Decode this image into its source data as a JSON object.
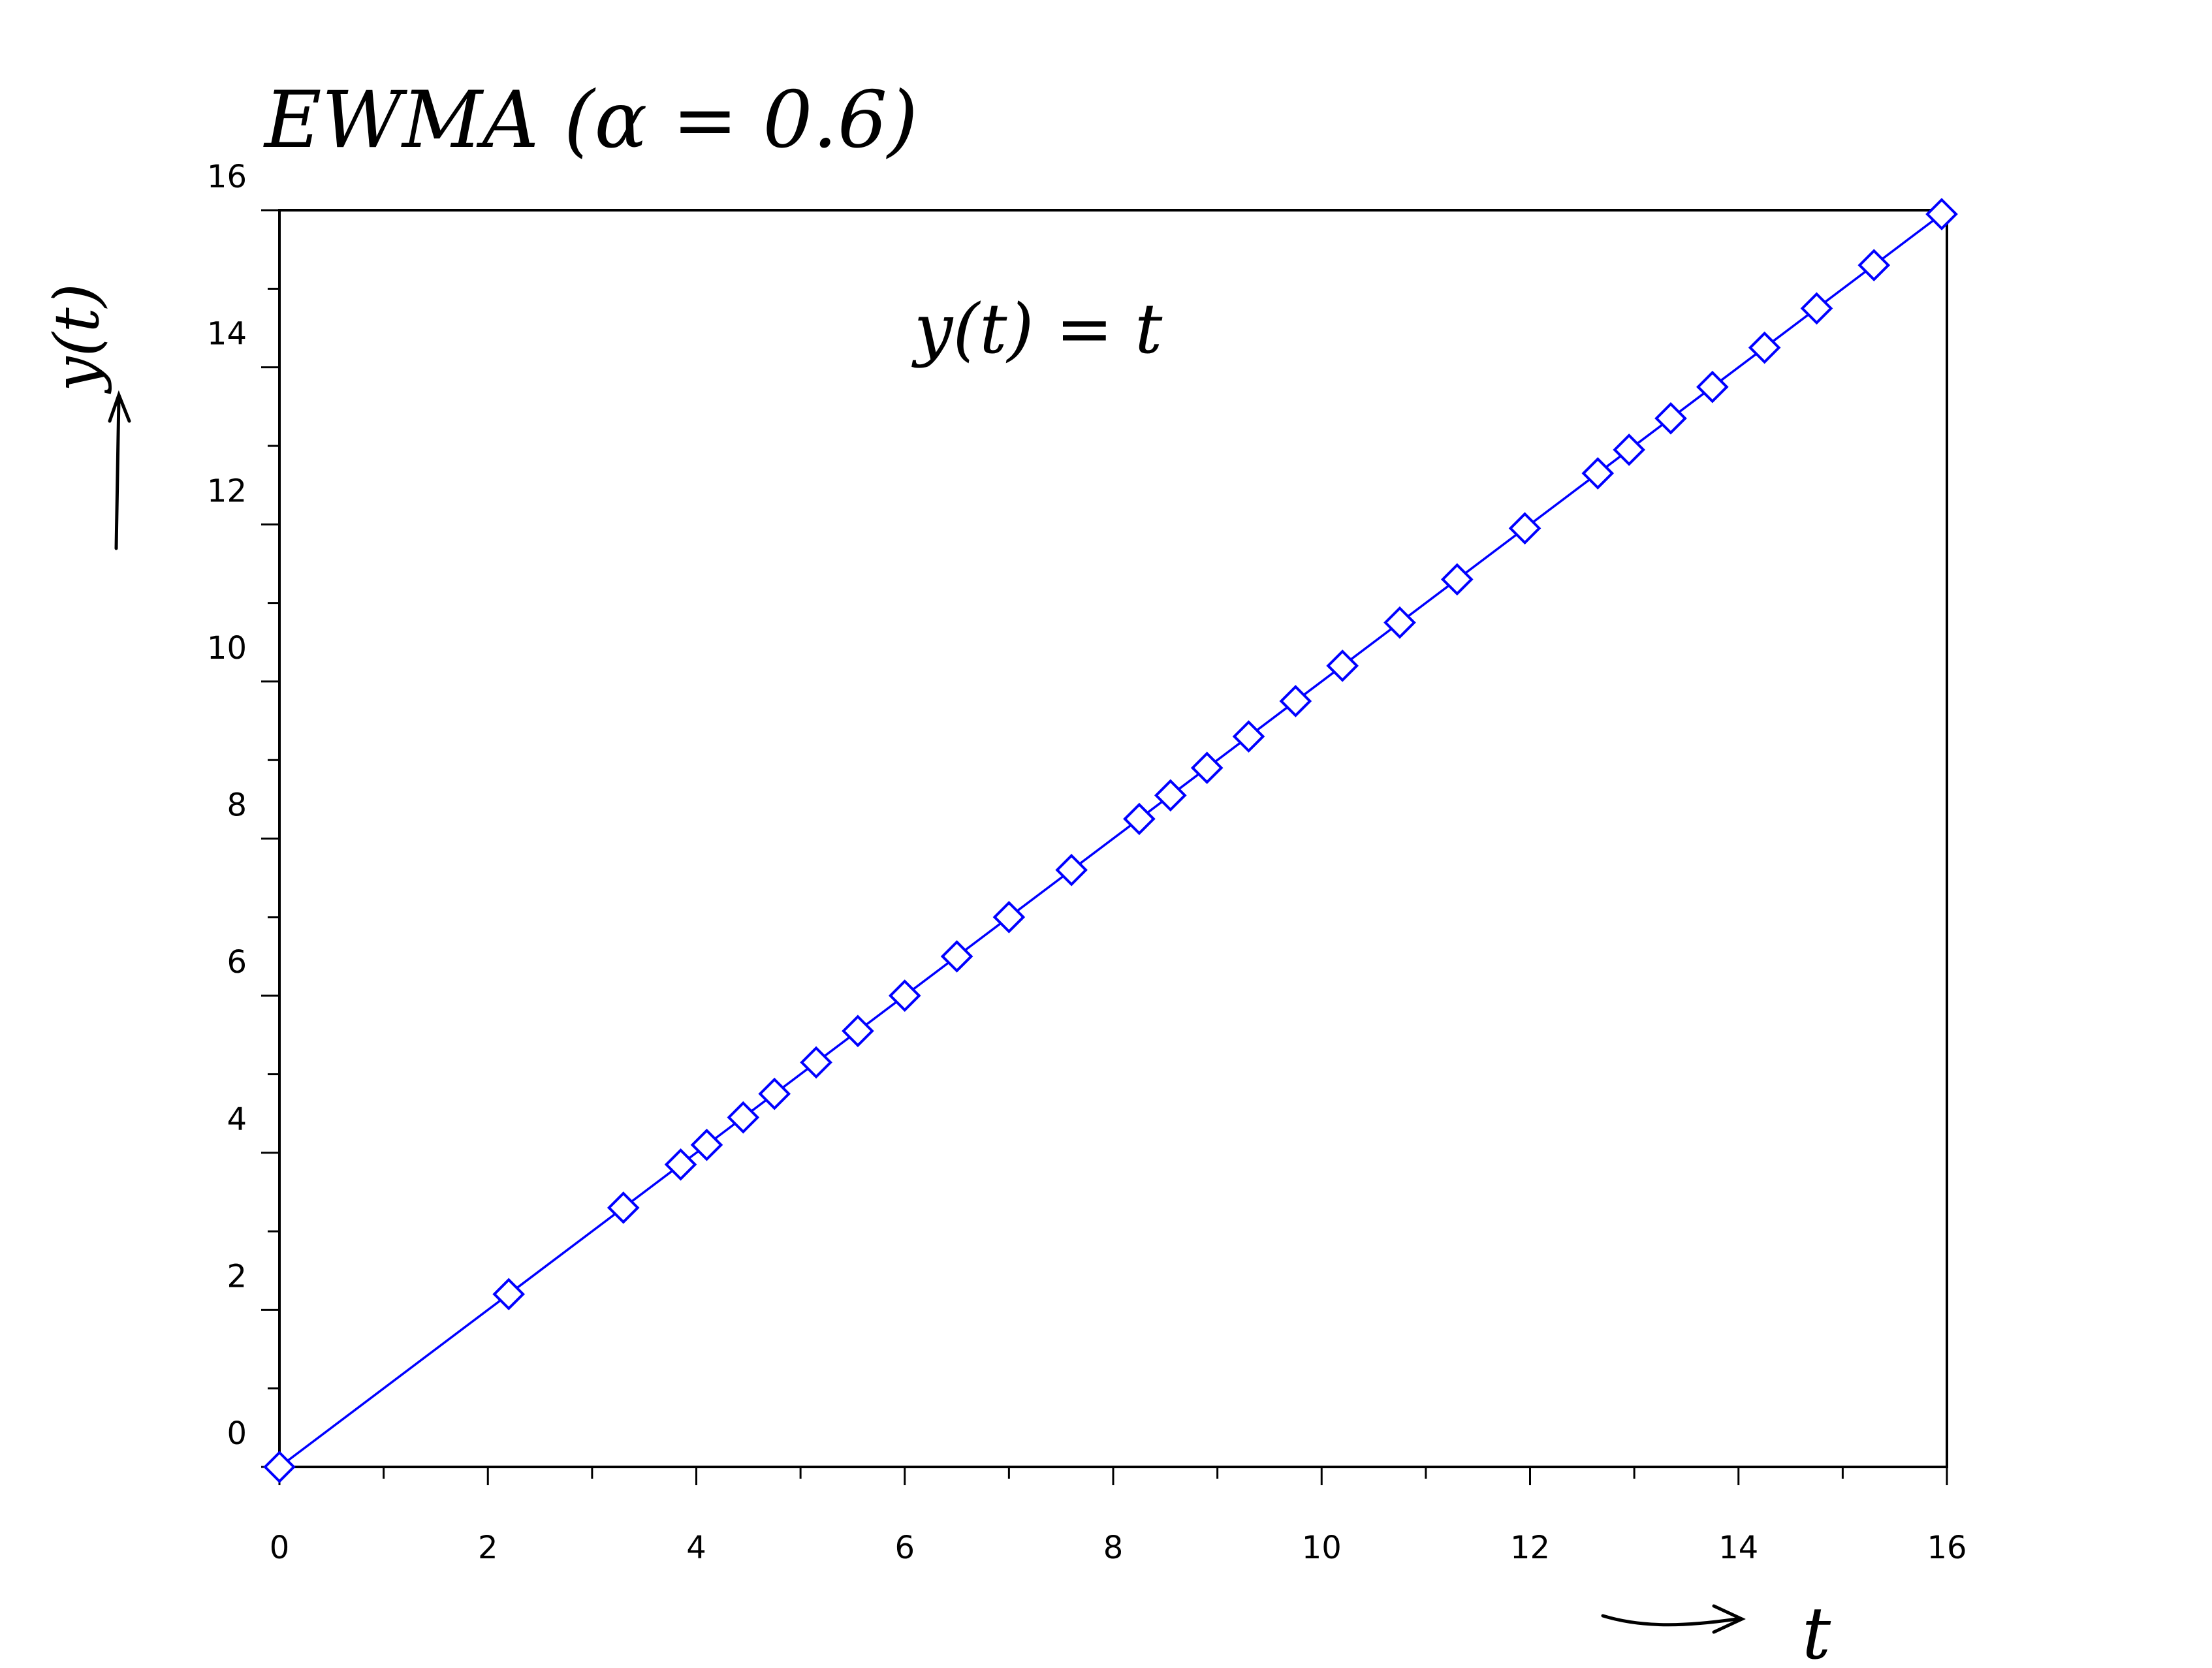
{
  "chart_data": {
    "type": "line",
    "title": "EWMA (α = 0.6)",
    "annotation": "y(t) = t",
    "xlabel": "t",
    "ylabel": "y(t)",
    "xlim": [
      0,
      16
    ],
    "ylim": [
      0,
      16
    ],
    "x_ticks": [
      0,
      2,
      4,
      6,
      8,
      10,
      12,
      14,
      16
    ],
    "y_ticks": [
      0,
      2,
      4,
      6,
      8,
      10,
      12,
      14,
      16
    ],
    "x_tick_labels": [
      "0",
      "2",
      "4",
      "6",
      "8",
      "10",
      "12",
      "14",
      "16"
    ],
    "y_tick_labels": [
      "0",
      "2",
      "4",
      "6",
      "8",
      "10",
      "12",
      "14",
      "16"
    ],
    "grid": false,
    "marker": "diamond",
    "series": [
      {
        "color": "#0000ff",
        "x": [
          0,
          2.2,
          3.3,
          3.85,
          4.1,
          4.45,
          4.75,
          5.15,
          5.55,
          6.0,
          6.5,
          7.0,
          7.6,
          8.25,
          8.55,
          8.9,
          9.3,
          9.75,
          10.2,
          10.75,
          11.3,
          11.95,
          12.65,
          12.95,
          13.35,
          13.75,
          14.25,
          14.75,
          15.3,
          15.95
        ],
        "y": [
          0,
          2.2,
          3.3,
          3.85,
          4.1,
          4.45,
          4.75,
          5.15,
          5.55,
          6.0,
          6.5,
          7.0,
          7.6,
          8.25,
          8.55,
          8.9,
          9.3,
          9.75,
          10.2,
          10.75,
          11.3,
          11.95,
          12.65,
          12.95,
          13.35,
          13.75,
          14.25,
          14.75,
          15.3,
          15.95
        ]
      }
    ]
  }
}
